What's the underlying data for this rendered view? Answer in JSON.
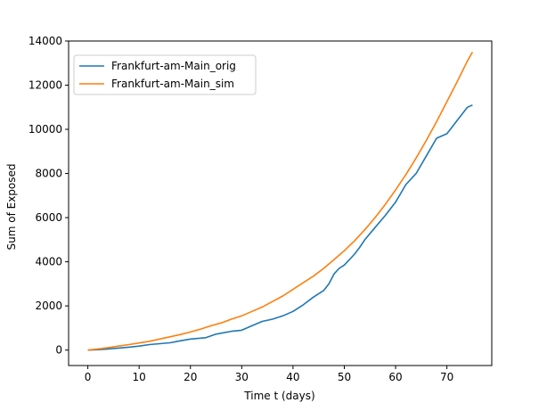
{
  "chart_data": {
    "type": "line",
    "title": "",
    "xlabel": "Time t (days)",
    "ylabel": "Sum of Exposed",
    "xlim": [
      -3.75,
      78.75
    ],
    "ylim": [
      -700,
      14000
    ],
    "xticks": [
      0,
      10,
      20,
      30,
      40,
      50,
      60,
      70
    ],
    "yticks": [
      0,
      2000,
      4000,
      6000,
      8000,
      10000,
      12000,
      14000
    ],
    "grid": false,
    "legend_position": "top-left",
    "series": [
      {
        "name": "Frankfurt-am-Main_orig",
        "color": "#1f77b4",
        "x": [
          0,
          2,
          4,
          6,
          8,
          10,
          12,
          14,
          16,
          18,
          20,
          23,
          25,
          28,
          30,
          32,
          34,
          36,
          38,
          40,
          42,
          44,
          46,
          47,
          48,
          49,
          50,
          52,
          53,
          54,
          56,
          58,
          60,
          62,
          64,
          66,
          68,
          69,
          70,
          71,
          72,
          74,
          75
        ],
        "y": [
          0,
          20,
          50,
          90,
          130,
          180,
          250,
          290,
          330,
          420,
          500,
          560,
          720,
          850,
          900,
          1100,
          1300,
          1400,
          1550,
          1750,
          2050,
          2400,
          2700,
          3000,
          3450,
          3700,
          3850,
          4350,
          4650,
          5000,
          5550,
          6100,
          6700,
          7500,
          8000,
          8800,
          9600,
          9700,
          9800,
          10100,
          10400,
          11000,
          11100
        ]
      },
      {
        "name": "Frankfurt-am-Main_sim",
        "color": "#ff7f0e",
        "x": [
          0,
          2,
          4,
          6,
          8,
          10,
          12,
          14,
          16,
          18,
          20,
          22,
          24,
          26,
          28,
          30,
          32,
          34,
          36,
          38,
          40,
          42,
          44,
          46,
          48,
          50,
          52,
          54,
          56,
          58,
          60,
          62,
          64,
          66,
          68,
          70,
          72,
          74,
          75
        ],
        "y": [
          0,
          50,
          110,
          180,
          250,
          320,
          400,
          500,
          600,
          700,
          820,
          950,
          1100,
          1230,
          1400,
          1550,
          1750,
          1950,
          2200,
          2450,
          2750,
          3050,
          3350,
          3700,
          4100,
          4500,
          4950,
          5450,
          6000,
          6600,
          7250,
          7950,
          8700,
          9500,
          10350,
          11250,
          12150,
          13100,
          13500
        ]
      }
    ]
  }
}
